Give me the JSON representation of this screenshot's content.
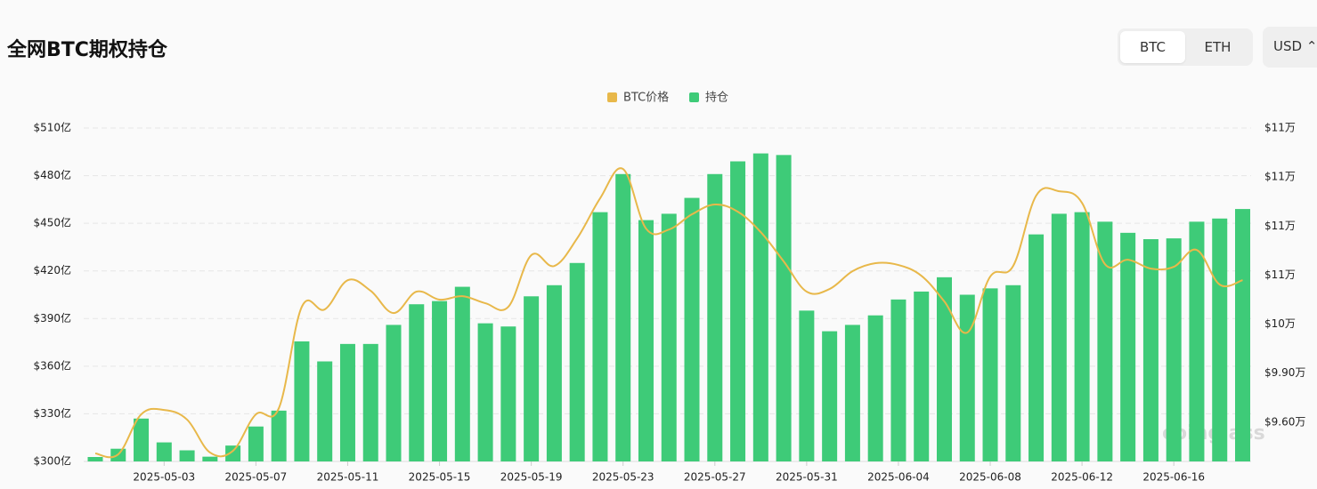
{
  "header": {
    "title": "全网BTC期权持仓",
    "buttons": [
      "BTC",
      "ETH"
    ],
    "currency": "USD"
  },
  "chart_data": {
    "type": "bar",
    "watermark": "coinglass",
    "categories": [
      null,
      null,
      null,
      "2025-05-03",
      null,
      null,
      null,
      "2025-05-07",
      null,
      null,
      null,
      "2025-05-11",
      null,
      null,
      null,
      "2025-05-15",
      null,
      null,
      null,
      "2025-05-19",
      null,
      null,
      null,
      "2025-05-23",
      null,
      null,
      null,
      "2025-05-27",
      null,
      null,
      null,
      "2025-05-31",
      null,
      null,
      null,
      "2025-06-04",
      null,
      null,
      null,
      "2025-06-08",
      null,
      null,
      null,
      "2025-06-12",
      null,
      null,
      null,
      "2025-06-16",
      null,
      null,
      null
    ],
    "series": [
      {
        "name": "BTC价格",
        "type": "line",
        "axis": "y2",
        "color": "#e8b84a",
        "values": [
          94090,
          94035,
          96480,
          96750,
          96160,
          94145,
          94250,
          96480,
          96860,
          103060,
          102900,
          104690,
          104040,
          102680,
          103990,
          103500,
          103710,
          103280,
          103060,
          106220,
          105560,
          107250,
          109700,
          111490,
          107850,
          107790,
          108720,
          109320,
          108880,
          107630,
          105840,
          103990,
          104150,
          105240,
          105730,
          105620,
          104960,
          103390,
          101490,
          104910,
          105560,
          109860,
          110130,
          109420,
          105670,
          105940,
          105400,
          105510,
          106540,
          104420,
          104690
        ]
      },
      {
        "name": "持仓",
        "type": "bar",
        "color": "#3ecb78",
        "values": [
          302.8,
          308,
          327,
          312,
          307,
          303,
          310,
          322,
          332,
          375.6,
          363,
          374,
          374,
          386,
          399,
          401,
          410,
          387,
          385,
          404,
          411,
          425,
          457,
          481,
          452,
          456,
          466,
          481,
          489,
          494,
          493,
          395,
          382,
          386,
          392,
          402,
          407,
          416,
          405,
          409,
          411,
          443,
          456,
          457,
          451,
          444,
          440,
          440.5,
          451,
          453,
          459
        ]
      }
    ],
    "ylim": [
      300,
      510
    ],
    "yticks": [
      {
        "value": 300,
        "label": "$300亿"
      },
      {
        "value": 330,
        "label": "$330亿"
      },
      {
        "value": 360,
        "label": "$360亿"
      },
      {
        "value": 390,
        "label": "$390亿"
      },
      {
        "value": 420,
        "label": "$420亿"
      },
      {
        "value": 450,
        "label": "$450亿"
      },
      {
        "value": 480,
        "label": "$480亿"
      },
      {
        "value": 510,
        "label": "$510亿"
      }
    ],
    "y2lim": [
      93600,
      114000
    ],
    "y2ticks": [
      {
        "value": 96000,
        "label": "$9.60万"
      },
      {
        "value": 99000,
        "label": "$9.90万"
      },
      {
        "value": 102000,
        "label": "$10万"
      },
      {
        "value": 105000,
        "label": "$11万"
      },
      {
        "value": 108000,
        "label": "$11万"
      },
      {
        "value": 111000,
        "label": "$11万"
      },
      {
        "value": 114000,
        "label": "$11万"
      }
    ],
    "grid": true,
    "legend": "top"
  }
}
